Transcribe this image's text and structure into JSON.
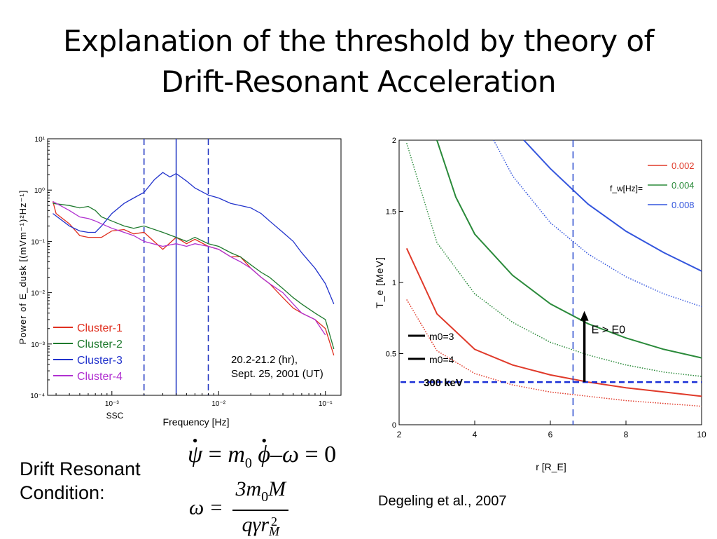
{
  "slide": {
    "title_line1": "Explanation of the threshold by theory of",
    "title_line2": "Drift-Resonant Acceleration",
    "condition_label_line1": "Drift Resonant",
    "condition_label_line2": "Condition:",
    "citation": "Degeling et al., 2007"
  },
  "equations": {
    "eq1": {
      "psi": "ψ",
      "eq_sign": "=",
      "m": "m",
      "sub0": "0",
      "phi": "ϕ",
      "minus": "–",
      "omega": "ω",
      "rhs": "= 0",
      "dot": "•"
    },
    "eq2": {
      "lhs": "ω =",
      "num": "3m",
      "num_sub": "0",
      "num_tail": "M",
      "den": "qγr",
      "den_sub": "M",
      "den_sup": "2"
    }
  },
  "chart_data": [
    {
      "type": "line",
      "ylabel": "Power of E_dusk [(mVm⁻¹)²Hz⁻¹]",
      "xlabel": "Frequency [Hz]",
      "x_scale": "log",
      "y_scale": "log",
      "xlim": [
        0.00025,
        0.14
      ],
      "ylim": [
        0.0001,
        10
      ],
      "x_ticks": [
        {
          "value": 0.001,
          "label": "10⁻³"
        },
        {
          "value": 0.01,
          "label": "10⁻²"
        },
        {
          "value": 0.1,
          "label": "10⁻¹"
        }
      ],
      "y_ticks": [
        {
          "value": 10,
          "label": "10¹"
        },
        {
          "value": 1,
          "label": "10⁰"
        },
        {
          "value": 0.1,
          "label": "10⁻¹"
        },
        {
          "value": 0.01,
          "label": "10⁻²"
        },
        {
          "value": 0.001,
          "label": "10⁻³"
        },
        {
          "value": 0.0001,
          "label": "10⁻⁴"
        }
      ],
      "ssc_label": "SSC",
      "vlines": [
        {
          "x": 0.002,
          "style": "dashed"
        },
        {
          "x": 0.004,
          "style": "solid"
        },
        {
          "x": 0.008,
          "style": "dashed"
        }
      ],
      "annotation": [
        "20.2-21.2 (hr),",
        "Sept. 25, 2001 (UT)"
      ],
      "legend_position": "bottom-left",
      "series": [
        {
          "name": "Cluster-1",
          "color": "#e03020",
          "x": [
            0.00028,
            0.0003,
            0.0004,
            0.0005,
            0.0006,
            0.0008,
            0.001,
            0.0013,
            0.0016,
            0.002,
            0.003,
            0.004,
            0.005,
            0.006,
            0.008,
            0.01,
            0.013,
            0.016,
            0.02,
            0.025,
            0.03,
            0.04,
            0.05,
            0.06,
            0.08,
            0.1,
            0.12
          ],
          "y": [
            0.6,
            0.35,
            0.22,
            0.13,
            0.12,
            0.12,
            0.16,
            0.17,
            0.14,
            0.15,
            0.07,
            0.12,
            0.09,
            0.11,
            0.08,
            0.07,
            0.05,
            0.05,
            0.03,
            0.02,
            0.015,
            0.008,
            0.005,
            0.004,
            0.003,
            0.002,
            0.0006
          ]
        },
        {
          "name": "Cluster-2",
          "color": "#1f7a2e",
          "x": [
            0.00028,
            0.0004,
            0.0005,
            0.0006,
            0.0007,
            0.0008,
            0.001,
            0.0013,
            0.0016,
            0.002,
            0.003,
            0.004,
            0.005,
            0.006,
            0.008,
            0.01,
            0.013,
            0.016,
            0.02,
            0.025,
            0.03,
            0.04,
            0.05,
            0.06,
            0.08,
            0.1,
            0.12
          ],
          "y": [
            0.55,
            0.5,
            0.45,
            0.48,
            0.4,
            0.3,
            0.25,
            0.2,
            0.18,
            0.2,
            0.15,
            0.12,
            0.1,
            0.12,
            0.09,
            0.08,
            0.06,
            0.05,
            0.035,
            0.025,
            0.02,
            0.012,
            0.008,
            0.006,
            0.004,
            0.003,
            0.0008
          ]
        },
        {
          "name": "Cluster-3",
          "color": "#2233cc",
          "x": [
            0.00028,
            0.0004,
            0.0005,
            0.0006,
            0.0007,
            0.0008,
            0.001,
            0.0013,
            0.0016,
            0.002,
            0.0025,
            0.003,
            0.0035,
            0.004,
            0.005,
            0.006,
            0.008,
            0.01,
            0.013,
            0.016,
            0.02,
            0.025,
            0.03,
            0.04,
            0.05,
            0.06,
            0.08,
            0.1,
            0.12
          ],
          "y": [
            0.35,
            0.2,
            0.16,
            0.15,
            0.15,
            0.2,
            0.35,
            0.55,
            0.7,
            0.9,
            1.6,
            2.2,
            1.8,
            2.1,
            1.5,
            1.1,
            0.8,
            0.7,
            0.55,
            0.5,
            0.45,
            0.35,
            0.25,
            0.15,
            0.1,
            0.06,
            0.03,
            0.015,
            0.006
          ]
        },
        {
          "name": "Cluster-4",
          "color": "#b030d0",
          "x": [
            0.00028,
            0.0004,
            0.0005,
            0.0006,
            0.0007,
            0.0008,
            0.001,
            0.0013,
            0.0016,
            0.002,
            0.003,
            0.004,
            0.005,
            0.006,
            0.008,
            0.01,
            0.013,
            0.016,
            0.02,
            0.025,
            0.03,
            0.04,
            0.05,
            0.06,
            0.08,
            0.1
          ],
          "y": [
            0.6,
            0.4,
            0.3,
            0.28,
            0.25,
            0.22,
            0.18,
            0.15,
            0.13,
            0.1,
            0.08,
            0.09,
            0.08,
            0.09,
            0.08,
            0.07,
            0.05,
            0.04,
            0.03,
            0.02,
            0.015,
            0.01,
            0.006,
            0.004,
            0.003,
            0.0015
          ]
        }
      ]
    },
    {
      "type": "line",
      "ylabel": "T_e [MeV]",
      "xlabel": "r [R_E]",
      "xlim": [
        2,
        10
      ],
      "ylim": [
        0,
        2
      ],
      "x_ticks": [
        2,
        4,
        6,
        8,
        10
      ],
      "y_ticks": [
        0,
        0.5,
        1,
        1.5,
        2
      ],
      "vline_x": 6.6,
      "threshold_line": {
        "y": 0.3,
        "label": "300 keV",
        "color": "#1a2fd6"
      },
      "arrow": {
        "x": 6.9,
        "from": 0.3,
        "to": 0.78,
        "label": "E > E0"
      },
      "legend_title": "f_w[Hz]=",
      "m0_legend": [
        {
          "label": "m0=3",
          "style": "solid"
        },
        {
          "label": "m0=4",
          "style": "dotted"
        }
      ],
      "legend_position": "top-right",
      "series": [
        {
          "name": "0.002",
          "color": "#e03a2a",
          "m0": 3,
          "x": [
            2.2,
            3,
            4,
            5,
            6,
            7,
            8,
            9,
            10
          ],
          "y": [
            1.24,
            0.78,
            0.53,
            0.42,
            0.35,
            0.3,
            0.26,
            0.23,
            0.2
          ]
        },
        {
          "name": "0.002",
          "color": "#e03a2a",
          "m0": 4,
          "x": [
            2.2,
            3,
            4,
            5,
            6,
            7,
            8,
            9,
            10
          ],
          "y": [
            0.88,
            0.52,
            0.36,
            0.28,
            0.23,
            0.2,
            0.17,
            0.15,
            0.13
          ]
        },
        {
          "name": "0.004",
          "color": "#2a8a3a",
          "m0": 3,
          "x": [
            3,
            3.5,
            4,
            5,
            6,
            7,
            8,
            9,
            10
          ],
          "y": [
            2.0,
            1.6,
            1.34,
            1.05,
            0.85,
            0.71,
            0.61,
            0.53,
            0.47
          ]
        },
        {
          "name": "0.004",
          "color": "#2a8a3a",
          "m0": 4,
          "x": [
            2.2,
            3,
            4,
            5,
            6,
            7,
            8,
            9,
            10
          ],
          "y": [
            1.98,
            1.28,
            0.92,
            0.72,
            0.58,
            0.49,
            0.42,
            0.37,
            0.34
          ]
        },
        {
          "name": "0.008",
          "color": "#3355dd",
          "m0": 3,
          "x": [
            5.3,
            6,
            7,
            8,
            9,
            10
          ],
          "y": [
            2.0,
            1.8,
            1.55,
            1.36,
            1.21,
            1.08
          ]
        },
        {
          "name": "0.008",
          "color": "#3355dd",
          "m0": 4,
          "x": [
            4.5,
            5,
            6,
            7,
            8,
            9,
            10
          ],
          "y": [
            2.0,
            1.75,
            1.42,
            1.2,
            1.04,
            0.92,
            0.83
          ]
        }
      ]
    }
  ]
}
